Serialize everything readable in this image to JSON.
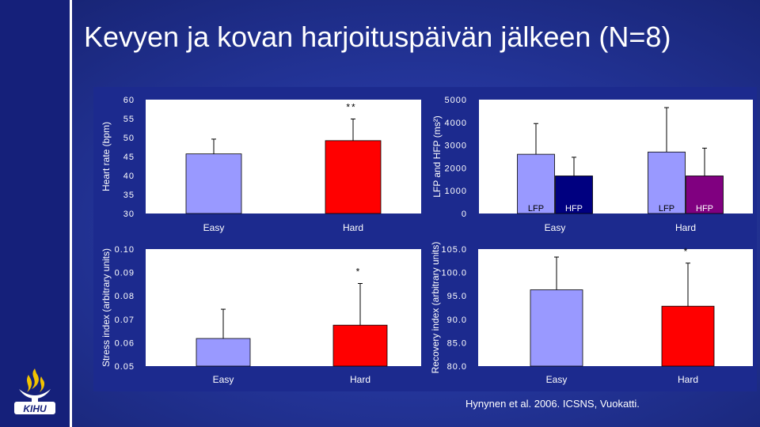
{
  "slide": {
    "title": "Kevyen ja kovan harjoituspäivän jälkeen (N=8)",
    "citation": "Hynynen et al. 2006. ICSNS, Vuokatti.",
    "logo_text": "KIHU"
  },
  "colors": {
    "easy": "#9999ff",
    "hard": "#ff0000",
    "lfp": "#9999ff",
    "hfp_easy": "#000080",
    "hfp_hard": "#800080",
    "plot_bg": "#ffffff",
    "panel_bg": "#1c2a8e"
  },
  "chart_data": [
    {
      "type": "bar",
      "ylabel": "Heart rate (bpm)",
      "ylim": [
        30,
        60
      ],
      "yticks": [
        "30",
        "35",
        "40",
        "45",
        "50",
        "55",
        "60"
      ],
      "categories": [
        "Easy",
        "Hard"
      ],
      "values": [
        45.7,
        49.2
      ],
      "errors": [
        3.9,
        5.7
      ],
      "annotation": "**"
    },
    {
      "type": "bar",
      "ylabel": "LFP and HFP (ms²)",
      "ylim": [
        0,
        5000
      ],
      "yticks": [
        "0",
        "1000",
        "2000",
        "3000",
        "4000",
        "5000"
      ],
      "groups": [
        "Easy",
        "Hard"
      ],
      "series": [
        {
          "name": "LFP",
          "values": [
            2600,
            2700
          ],
          "errors": [
            1350,
            1950
          ]
        },
        {
          "name": "HFP",
          "values": [
            1650,
            1650
          ],
          "errors": [
            820,
            1220
          ]
        }
      ]
    },
    {
      "type": "bar",
      "ylabel": "Stress index (arbitrary units)",
      "ylim": [
        0.05,
        0.1
      ],
      "yticks": [
        "0.05",
        "0.06",
        "0.07",
        "0.08",
        "0.09",
        "0.10"
      ],
      "categories": [
        "Easy",
        "Hard"
      ],
      "values": [
        0.0618,
        0.0675
      ],
      "errors": [
        0.0125,
        0.0178
      ],
      "annotation": "*"
    },
    {
      "type": "bar",
      "ylabel": "Recovery index (arbitrary units)",
      "ylim": [
        80,
        105
      ],
      "yticks": [
        "80.0",
        "85.0",
        "90.0",
        "95.0",
        "100.0",
        "105.0"
      ],
      "categories": [
        "Easy",
        "Hard"
      ],
      "values": [
        96.3,
        92.8
      ],
      "errors": [
        7.0,
        9.2
      ],
      "annotation": "*"
    }
  ]
}
